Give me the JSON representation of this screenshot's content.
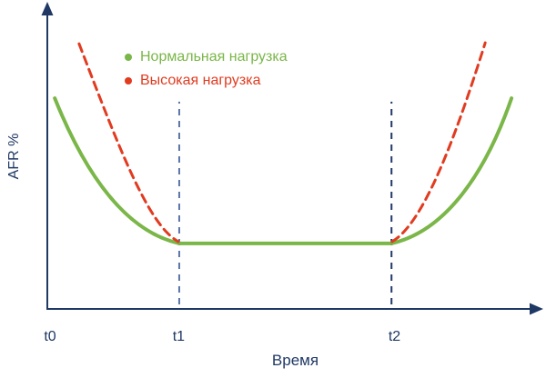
{
  "figure": {
    "background": "#ffffff",
    "text_color": "#1f3864"
  },
  "chart_data": {
    "type": "line",
    "title": "",
    "xlabel": "Время",
    "ylabel": "AFR %",
    "x_tick_labels": [
      "t0",
      "t1",
      "t2"
    ],
    "x_tick_positions_pct": [
      0.55,
      26.5,
      70.0
    ],
    "y_tick_labels": [],
    "axes_numeric": false,
    "axes_color": "#1f3864",
    "grid": false,
    "legend_position": "top-left-inside",
    "units_note": "x_pct / y_pct are percent of plot area; 0 = axis origin",
    "series": [
      {
        "name": "Нормальная нагрузка",
        "color": "#7ab648",
        "line_style": "solid",
        "stroke_width": 4,
        "shape": "bathtub: high at t0, flat minimum between t1 and t2, rises after t2",
        "path_pct": [
          {
            "cmd": "M",
            "p": [
              [
                1.5,
                68.8
              ]
            ]
          },
          {
            "cmd": "C",
            "p": [
              [
                7.9,
                43.0
              ],
              [
                16.1,
                25.2
              ],
              [
                26.6,
                21.4
              ]
            ]
          },
          {
            "cmd": "L",
            "p": [
              [
                69.4,
                21.4
              ]
            ]
          },
          {
            "cmd": "C",
            "p": [
              [
                79.8,
                25.2
              ],
              [
                88.1,
                43.0
              ],
              [
                93.6,
                68.8
              ]
            ]
          }
        ]
      },
      {
        "name": "Высокая нагрузка",
        "color": "#e13b20",
        "line_style": "dashed",
        "stroke_width": 3,
        "shape": "steeper bathtub walls: starts higher before t1 and rises higher after t2, no flat part drawn",
        "path_pct": [
          {
            "cmd": "M",
            "p": [
              [
                6.4,
                86.6
              ]
            ]
          },
          {
            "cmd": "C",
            "p": [
              [
                14.3,
                53.4
              ],
              [
                20.2,
                27.6
              ],
              [
                26.4,
                22.0
              ]
            ]
          },
          {
            "cmd": "M",
            "p": [
              [
                69.5,
                22.0
              ]
            ]
          },
          {
            "cmd": "C",
            "p": [
              [
                75.6,
                27.6
              ],
              [
                81.8,
                53.4
              ],
              [
                88.3,
                86.9
              ]
            ]
          }
        ]
      }
    ],
    "guides": [
      {
        "at_tick": "t1",
        "x_pct": 26.6,
        "y_bottom_pct": 1.5,
        "y_top_pct": 67.7,
        "color": "#5b76a8",
        "style": "dashed"
      },
      {
        "at_tick": "t2",
        "x_pct": 69.4,
        "y_bottom_pct": 1.5,
        "y_top_pct": 67.7,
        "color": "#21386b",
        "style": "dashed"
      }
    ]
  }
}
